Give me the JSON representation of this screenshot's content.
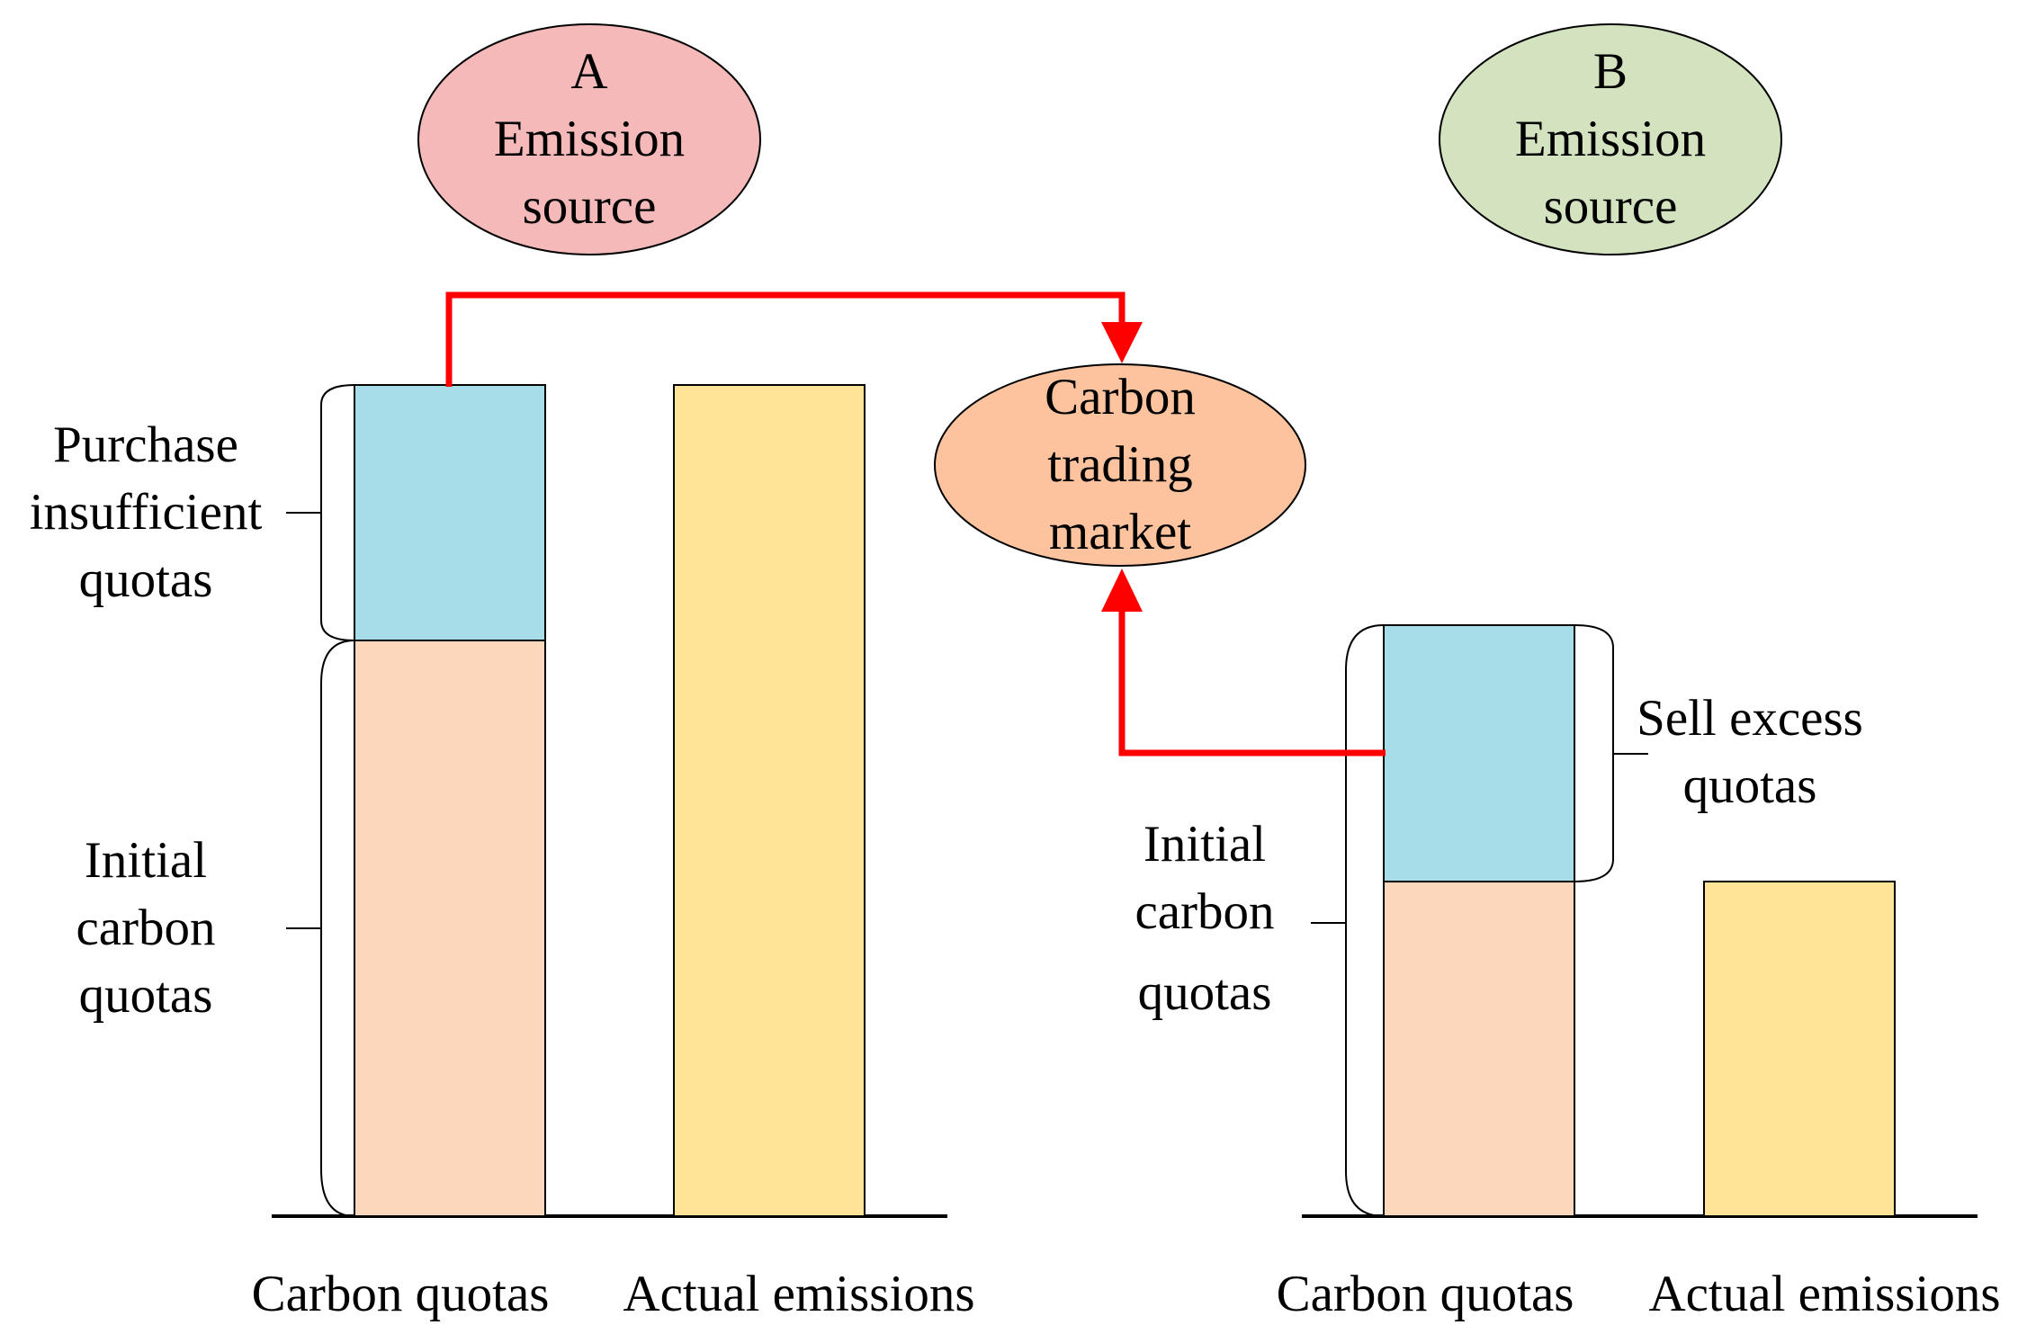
{
  "source_a": {
    "lines": [
      "A",
      "Emission",
      "source"
    ],
    "fill": "#F4B9B8"
  },
  "source_b": {
    "lines": [
      "B",
      "Emission",
      "source"
    ],
    "fill": "#D4E3BF"
  },
  "market": {
    "lines": [
      "Carbon",
      "trading",
      "market"
    ],
    "fill": "#FDC39E"
  },
  "left_panel": {
    "purchase_label": [
      "Purchase",
      "insufficient",
      "quotas"
    ],
    "initial_label": [
      "Initial",
      "carbon",
      "quotas"
    ],
    "x_labels": [
      "Carbon quotas",
      "Actual emissions"
    ]
  },
  "right_panel": {
    "sell_label": [
      "Sell excess",
      "quotas"
    ],
    "initial_label": [
      "Initial",
      "carbon",
      "quotas"
    ],
    "x_labels": [
      "Carbon quotas",
      "Actual emissions"
    ]
  },
  "colors": {
    "initial_quota": "#FDD7BC",
    "traded_quota": "#A7DDE9",
    "actual_emissions": "#FFE497",
    "flow_arrow": "#FF0000"
  }
}
